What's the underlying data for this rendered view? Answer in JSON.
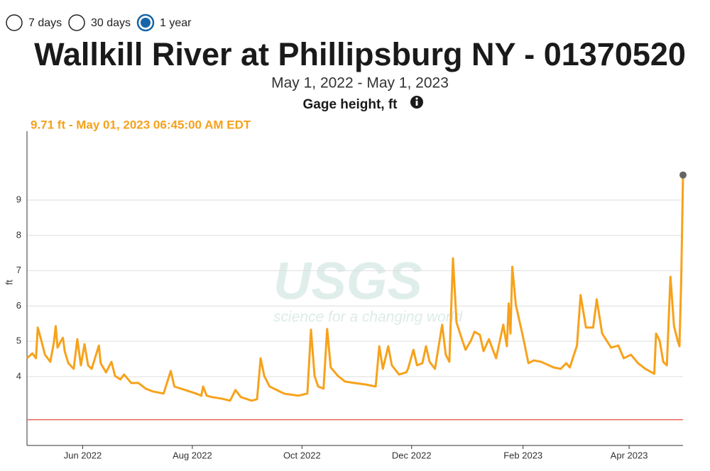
{
  "controls": {
    "ranges": [
      "7 days",
      "30 days",
      "1 year"
    ],
    "selected": 2
  },
  "chart_data": {
    "type": "line",
    "title": "Wallkill River at Phillipsburg NY - 01370520",
    "subtitle": "May 1, 2022 - May 1, 2023",
    "parameter": "Gage height, ft",
    "readout": "9.71 ft - May 01, 2023 06:45:00 AM EDT",
    "y_label": "ft",
    "watermark": {
      "logo": "USGS",
      "tagline": "science for a changing world"
    },
    "color": "#f7a21b",
    "grid": true,
    "xlim": [
      "2022-05-01",
      "2023-05-01"
    ],
    "xticks": [
      {
        "value": "2022-06-01",
        "label": "Jun 2022"
      },
      {
        "value": "2022-08-01",
        "label": "Aug 2022"
      },
      {
        "value": "2022-10-01",
        "label": "Oct 2022"
      },
      {
        "value": "2022-12-01",
        "label": "Dec 2022"
      },
      {
        "value": "2023-02-01",
        "label": "Feb 2023"
      },
      {
        "value": "2023-04-01",
        "label": "Apr 2023"
      }
    ],
    "ylim": [
      2.05,
      10.95
    ],
    "yticks": [
      4,
      5,
      6,
      7,
      8,
      9
    ],
    "reference_line": {
      "value": 2.78,
      "color": "#e8665a"
    },
    "x": [
      "2022-05-01",
      "2022-05-04",
      "2022-05-06",
      "2022-05-07",
      "2022-05-09",
      "2022-05-11",
      "2022-05-14",
      "2022-05-16",
      "2022-05-17",
      "2022-05-18",
      "2022-05-20",
      "2022-05-21",
      "2022-05-22",
      "2022-05-24",
      "2022-05-27",
      "2022-05-29",
      "2022-05-31",
      "2022-06-02",
      "2022-06-04",
      "2022-06-06",
      "2022-06-10",
      "2022-06-11",
      "2022-06-14",
      "2022-06-17",
      "2022-06-19",
      "2022-06-22",
      "2022-06-24",
      "2022-06-28",
      "2022-07-02",
      "2022-07-06",
      "2022-07-10",
      "2022-07-16",
      "2022-07-20",
      "2022-07-22",
      "2022-07-28",
      "2022-08-03",
      "2022-08-06",
      "2022-08-07",
      "2022-08-09",
      "2022-08-12",
      "2022-08-17",
      "2022-08-22",
      "2022-08-25",
      "2022-08-28",
      "2022-09-03",
      "2022-09-06",
      "2022-09-08",
      "2022-09-10",
      "2022-09-13",
      "2022-09-17",
      "2022-09-21",
      "2022-09-29",
      "2022-10-04",
      "2022-10-06",
      "2022-10-08",
      "2022-10-10",
      "2022-10-13",
      "2022-10-15",
      "2022-10-17",
      "2022-10-21",
      "2022-10-25",
      "2022-10-30",
      "2022-11-05",
      "2022-11-11",
      "2022-11-13",
      "2022-11-15",
      "2022-11-18",
      "2022-11-20",
      "2022-11-24",
      "2022-11-28",
      "2022-11-29",
      "2022-12-02",
      "2022-12-04",
      "2022-12-07",
      "2022-12-09",
      "2022-12-11",
      "2022-12-14",
      "2022-12-18",
      "2022-12-20",
      "2022-12-22",
      "2022-12-24",
      "2022-12-26",
      "2022-12-29",
      "2022-12-31",
      "2023-01-03",
      "2023-01-05",
      "2023-01-08",
      "2023-01-10",
      "2023-01-13",
      "2023-01-17",
      "2023-01-21",
      "2023-01-23",
      "2023-01-24",
      "2023-01-25",
      "2023-01-26",
      "2023-01-28",
      "2023-02-01",
      "2023-02-04",
      "2023-02-07",
      "2023-02-11",
      "2023-02-18",
      "2023-02-22",
      "2023-02-25",
      "2023-02-27",
      "2023-03-03",
      "2023-03-05",
      "2023-03-08",
      "2023-03-12",
      "2023-03-14",
      "2023-03-17",
      "2023-03-22",
      "2023-03-26",
      "2023-03-29",
      "2023-04-02",
      "2023-04-06",
      "2023-04-10",
      "2023-04-15",
      "2023-04-16",
      "2023-04-18",
      "2023-04-20",
      "2023-04-22",
      "2023-04-24",
      "2023-04-26",
      "2023-04-28",
      "2023-04-29",
      "2023-04-30",
      "2023-05-01"
    ],
    "values": [
      4.52,
      4.66,
      4.52,
      5.39,
      5.02,
      4.62,
      4.42,
      4.98,
      5.43,
      4.82,
      5.02,
      5.1,
      4.72,
      4.38,
      4.22,
      5.06,
      4.32,
      4.92,
      4.32,
      4.22,
      4.88,
      4.38,
      4.12,
      4.42,
      4.02,
      3.92,
      4.06,
      3.82,
      3.82,
      3.66,
      3.58,
      3.52,
      4.16,
      3.72,
      3.62,
      3.52,
      3.46,
      3.72,
      3.46,
      3.42,
      3.38,
      3.32,
      3.62,
      3.42,
      3.32,
      3.36,
      4.52,
      4.02,
      3.72,
      3.62,
      3.52,
      3.46,
      3.52,
      5.33,
      4.02,
      3.72,
      3.66,
      5.35,
      4.26,
      4.02,
      3.86,
      3.82,
      3.78,
      3.72,
      4.86,
      4.22,
      4.86,
      4.32,
      4.06,
      4.12,
      4.22,
      4.76,
      4.32,
      4.38,
      4.86,
      4.42,
      4.22,
      5.47,
      4.62,
      4.42,
      7.35,
      5.53,
      5.06,
      4.76,
      5.02,
      5.27,
      5.18,
      4.72,
      5.06,
      4.52,
      5.47,
      4.86,
      6.07,
      5.22,
      7.11,
      6.03,
      5.12,
      4.38,
      4.46,
      4.42,
      4.26,
      4.22,
      4.38,
      4.26,
      4.88,
      6.31,
      5.39,
      5.39,
      6.19,
      5.22,
      4.82,
      4.88,
      4.52,
      4.62,
      4.38,
      4.22,
      4.08,
      5.22,
      5.02,
      4.42,
      4.32,
      6.83,
      5.43,
      5.02,
      4.86,
      6.73,
      9.71
    ]
  }
}
